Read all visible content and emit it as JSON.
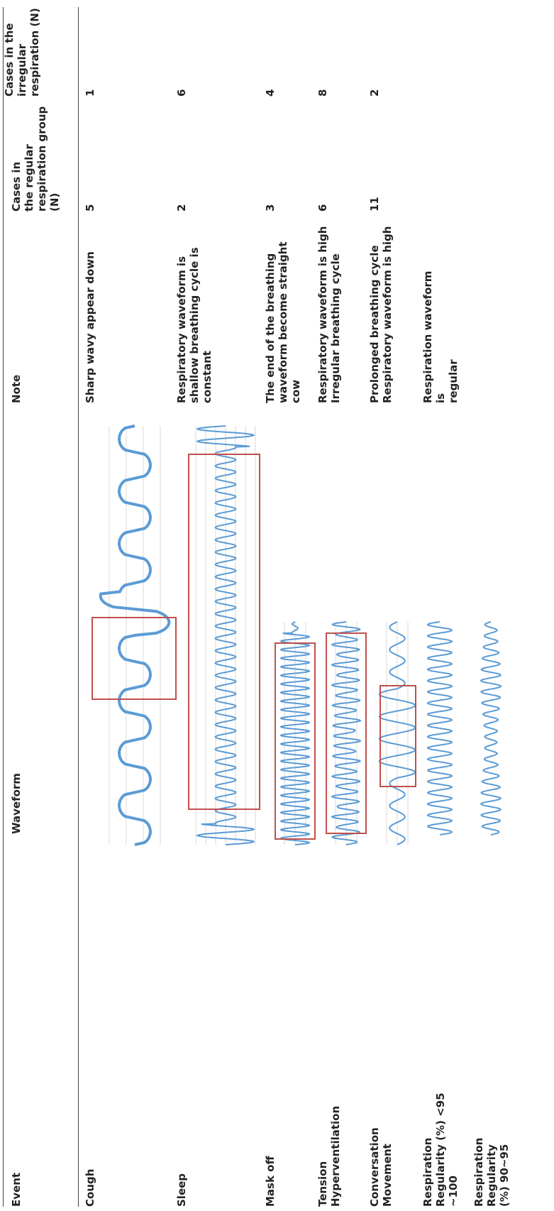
{
  "headers": {
    "event": "Event",
    "waveform": "Waveform",
    "note": "Note",
    "regular": "Cases in\nthe regular\nrespiration group\n(N)",
    "irregular": "Cases in the\nirregular\nrespiration (N)"
  },
  "rows": [
    {
      "event": "Cough",
      "note": "Sharp wavy appear down",
      "regular": "5",
      "irregular": "1"
    },
    {
      "event": "Sleep",
      "note": "Respiratory waveform is\nshallow breathing cycle is\nconstant",
      "regular": "2",
      "irregular": "6"
    },
    {
      "event": "Mask off",
      "note": "The end of the breathing\nwaveform become straight\ncow",
      "regular": "3",
      "irregular": "4"
    },
    {
      "event": "Tension\nHyperventilation",
      "note": "Respiratory waveform is high\nIrregular breathing cycle",
      "regular": "6",
      "irregular": "8"
    },
    {
      "event": "Conversation\nMovement",
      "note": "Prolonged breathing cycle\nRespiratory waveform is high",
      "regular": "11",
      "irregular": "2"
    },
    {
      "event": "Respiration Regularity (%) <95 ~100",
      "note": "Respiration waveform is\nregular",
      "regular": "",
      "irregular": ""
    },
    {
      "event": "Respiration Regularity (%) 90~95",
      "note": "",
      "regular": "",
      "irregular": ""
    }
  ],
  "colors": {
    "wave": "#5b9bd5",
    "highlight": "#c0504d",
    "grid": "#d9d9d9"
  }
}
